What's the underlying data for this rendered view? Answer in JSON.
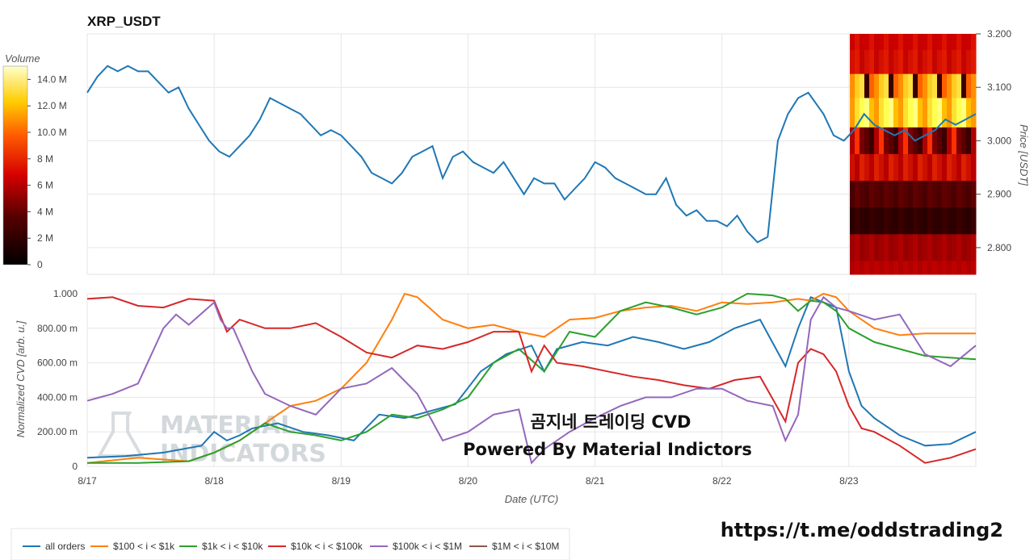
{
  "title": "XRP_USDT",
  "colorbar": {
    "title": "Volume",
    "ticks": [
      {
        "label": "14.0 M",
        "value": 14
      },
      {
        "label": "12.0 M",
        "value": 12
      },
      {
        "label": "10.0 M",
        "value": 10
      },
      {
        "label": "8 M",
        "value": 8
      },
      {
        "label": "6 M",
        "value": 6
      },
      {
        "label": "4 M",
        "value": 4
      },
      {
        "label": "2 M",
        "value": 2
      },
      {
        "label": "0",
        "value": 0
      }
    ]
  },
  "watermark": {
    "line1": "곰지네 트레이딩 CVD",
    "line2": "Powered By Material Indictors",
    "logo_line1": "MATERIAL",
    "logo_line2": "INDICATORS"
  },
  "url": "https://t.me/oddstrading2",
  "chart_data": [
    {
      "type": "line",
      "title": "XRP_USDT",
      "ylabel": "Price [USDT]",
      "ylim": [
        2.75,
        3.2
      ],
      "yticks": [
        "3.200",
        "3.100",
        "3.000",
        "2.900",
        "2.800"
      ],
      "ytick_values": [
        3.2,
        3.1,
        3.0,
        2.9,
        2.8
      ],
      "xlim": [
        0,
        7.0
      ],
      "xticks": [
        "8/17",
        "8/18",
        "8/19",
        "8/20",
        "8/21",
        "8/22",
        "8/23"
      ],
      "grid": true,
      "series": [
        {
          "color": "#1f77b4",
          "x": [
            0,
            0.08,
            0.16,
            0.24,
            0.32,
            0.4,
            0.48,
            0.56,
            0.64,
            0.72,
            0.8,
            0.88,
            0.96,
            1.04,
            1.12,
            1.2,
            1.28,
            1.36,
            1.44,
            1.52,
            1.6,
            1.68,
            1.76,
            1.84,
            1.92,
            2.0,
            2.08,
            2.16,
            2.24,
            2.32,
            2.4,
            2.48,
            2.56,
            2.64,
            2.72,
            2.8,
            2.88,
            2.96,
            3.04,
            3.12,
            3.2,
            3.28,
            3.36,
            3.44,
            3.52,
            3.6,
            3.68,
            3.76,
            3.84,
            3.92,
            4.0,
            4.08,
            4.16,
            4.24,
            4.32,
            4.4,
            4.48,
            4.56,
            4.64,
            4.72,
            4.8,
            4.88,
            4.96,
            5.04,
            5.12,
            5.2,
            5.28,
            5.36,
            5.44,
            5.52,
            5.6,
            5.68,
            5.74,
            5.8,
            5.88,
            5.96,
            6.04,
            6.12,
            6.2,
            6.28,
            6.36,
            6.44,
            6.52,
            6.6,
            6.68,
            6.76,
            6.84,
            6.92,
            7.0
          ],
          "y": [
            3.09,
            3.12,
            3.14,
            3.13,
            3.14,
            3.13,
            3.13,
            3.11,
            3.09,
            3.1,
            3.06,
            3.03,
            3.0,
            2.98,
            2.97,
            2.99,
            3.01,
            3.04,
            3.08,
            3.07,
            3.06,
            3.05,
            3.03,
            3.01,
            3.02,
            3.01,
            2.99,
            2.97,
            2.94,
            2.93,
            2.92,
            2.94,
            2.97,
            2.98,
            2.99,
            2.93,
            2.97,
            2.98,
            2.96,
            2.95,
            2.94,
            2.96,
            2.93,
            2.9,
            2.93,
            2.92,
            2.92,
            2.89,
            2.91,
            2.93,
            2.96,
            2.95,
            2.93,
            2.92,
            2.91,
            2.9,
            2.9,
            2.93,
            2.88,
            2.86,
            2.87,
            2.85,
            2.85,
            2.84,
            2.86,
            2.83,
            2.81,
            2.82,
            3.0,
            3.05,
            3.08,
            3.09,
            3.07,
            3.05,
            3.01,
            3.0,
            3.02,
            3.05,
            3.03,
            3.02,
            3.01,
            3.02,
            3.0,
            3.01,
            3.02,
            3.04,
            3.03,
            3.04,
            3.05
          ]
        }
      ],
      "heatmap_note": "volume profile heatmap overlay on right portion (approx 8/23 onward)"
    },
    {
      "type": "line",
      "ylabel": "Normalized CVD [arb. u.]",
      "xlabel": "Date (UTC)",
      "ylim": [
        0,
        1.0
      ],
      "yticks": [
        "1.000",
        "800.00 m",
        "600.00 m",
        "400.00 m",
        "200.00 m",
        "0"
      ],
      "ytick_values": [
        1.0,
        0.8,
        0.6,
        0.4,
        0.2,
        0
      ],
      "xlim": [
        0,
        7.0
      ],
      "xticks": [
        "8/17",
        "8/18",
        "8/19",
        "8/20",
        "8/21",
        "8/22",
        "8/23"
      ],
      "grid": true,
      "legend_position": "bottom",
      "series": [
        {
          "name": "all orders",
          "color": "#1f77b4",
          "x": [
            0,
            0.3,
            0.6,
            0.9,
            1.0,
            1.1,
            1.2,
            1.3,
            1.5,
            1.7,
            1.9,
            2.1,
            2.3,
            2.5,
            2.7,
            2.9,
            3.1,
            3.3,
            3.5,
            3.6,
            3.7,
            3.9,
            4.1,
            4.3,
            4.5,
            4.7,
            4.9,
            5.1,
            5.3,
            5.5,
            5.6,
            5.7,
            5.8,
            5.9,
            6.0,
            6.1,
            6.2,
            6.4,
            6.6,
            6.8,
            7.0
          ],
          "y": [
            0.05,
            0.06,
            0.08,
            0.12,
            0.2,
            0.15,
            0.18,
            0.22,
            0.25,
            0.2,
            0.18,
            0.15,
            0.3,
            0.28,
            0.32,
            0.36,
            0.55,
            0.65,
            0.7,
            0.55,
            0.68,
            0.72,
            0.7,
            0.75,
            0.72,
            0.68,
            0.72,
            0.8,
            0.85,
            0.58,
            0.8,
            0.98,
            0.95,
            0.92,
            0.55,
            0.35,
            0.28,
            0.18,
            0.12,
            0.13,
            0.2
          ]
        },
        {
          "name": "$100 < i < $1k",
          "color": "#ff7f0e",
          "x": [
            0,
            0.4,
            0.8,
            1.0,
            1.2,
            1.4,
            1.6,
            1.8,
            2.0,
            2.2,
            2.4,
            2.5,
            2.6,
            2.8,
            3.0,
            3.2,
            3.4,
            3.6,
            3.8,
            4.0,
            4.2,
            4.4,
            4.6,
            4.8,
            5.0,
            5.2,
            5.4,
            5.6,
            5.7,
            5.8,
            5.9,
            6.0,
            6.2,
            6.4,
            6.6,
            6.8,
            7.0
          ],
          "y": [
            0.02,
            0.05,
            0.03,
            0.08,
            0.15,
            0.25,
            0.35,
            0.38,
            0.45,
            0.6,
            0.85,
            1.0,
            0.98,
            0.85,
            0.8,
            0.82,
            0.78,
            0.75,
            0.85,
            0.86,
            0.9,
            0.92,
            0.93,
            0.9,
            0.95,
            0.94,
            0.95,
            0.97,
            0.96,
            1.0,
            0.98,
            0.9,
            0.8,
            0.76,
            0.77,
            0.77,
            0.77
          ]
        },
        {
          "name": "$1k < i < $10k",
          "color": "#2ca02c",
          "x": [
            0,
            0.4,
            0.8,
            1.0,
            1.2,
            1.4,
            1.6,
            1.8,
            2.0,
            2.2,
            2.4,
            2.6,
            2.8,
            3.0,
            3.2,
            3.4,
            3.6,
            3.8,
            4.0,
            4.2,
            4.4,
            4.6,
            4.8,
            5.0,
            5.2,
            5.4,
            5.5,
            5.6,
            5.7,
            5.8,
            5.9,
            6.0,
            6.2,
            6.4,
            6.6,
            6.8,
            7.0
          ],
          "y": [
            0.02,
            0.02,
            0.03,
            0.08,
            0.15,
            0.25,
            0.2,
            0.18,
            0.15,
            0.2,
            0.3,
            0.28,
            0.33,
            0.4,
            0.6,
            0.68,
            0.55,
            0.78,
            0.75,
            0.9,
            0.95,
            0.92,
            0.88,
            0.92,
            1.0,
            0.99,
            0.97,
            0.9,
            0.96,
            0.95,
            0.9,
            0.8,
            0.72,
            0.68,
            0.64,
            0.63,
            0.62
          ]
        },
        {
          "name": "$10k < i < $100k",
          "color": "#d62728",
          "x": [
            0,
            0.2,
            0.4,
            0.6,
            0.8,
            1.0,
            1.1,
            1.2,
            1.4,
            1.6,
            1.8,
            2.0,
            2.2,
            2.4,
            2.6,
            2.8,
            3.0,
            3.2,
            3.4,
            3.5,
            3.6,
            3.7,
            3.9,
            4.1,
            4.3,
            4.5,
            4.7,
            4.9,
            5.1,
            5.3,
            5.5,
            5.6,
            5.7,
            5.8,
            5.9,
            6.0,
            6.1,
            6.2,
            6.4,
            6.6,
            6.8,
            7.0
          ],
          "y": [
            0.97,
            0.98,
            0.93,
            0.92,
            0.97,
            0.96,
            0.78,
            0.85,
            0.8,
            0.8,
            0.83,
            0.75,
            0.66,
            0.63,
            0.7,
            0.68,
            0.72,
            0.78,
            0.78,
            0.55,
            0.7,
            0.6,
            0.58,
            0.55,
            0.52,
            0.5,
            0.47,
            0.45,
            0.5,
            0.52,
            0.26,
            0.6,
            0.68,
            0.65,
            0.55,
            0.35,
            0.22,
            0.2,
            0.12,
            0.02,
            0.05,
            0.1
          ]
        },
        {
          "name": "$100k < i < $1M",
          "color": "#9467bd",
          "x": [
            0,
            0.2,
            0.4,
            0.6,
            0.7,
            0.8,
            1.0,
            1.05,
            1.1,
            1.15,
            1.3,
            1.4,
            1.6,
            1.8,
            2.0,
            2.2,
            2.4,
            2.6,
            2.8,
            3.0,
            3.2,
            3.4,
            3.5,
            3.6,
            3.8,
            4.0,
            4.2,
            4.4,
            4.6,
            4.8,
            5.0,
            5.2,
            5.4,
            5.5,
            5.6,
            5.7,
            5.8,
            5.9,
            6.0,
            6.2,
            6.4,
            6.6,
            6.8,
            7.0
          ],
          "y": [
            0.38,
            0.42,
            0.48,
            0.8,
            0.88,
            0.82,
            0.95,
            0.85,
            0.8,
            0.8,
            0.55,
            0.42,
            0.35,
            0.3,
            0.45,
            0.48,
            0.57,
            0.42,
            0.15,
            0.2,
            0.3,
            0.33,
            0.02,
            0.1,
            0.2,
            0.28,
            0.35,
            0.4,
            0.4,
            0.45,
            0.45,
            0.38,
            0.35,
            0.15,
            0.3,
            0.85,
            0.98,
            0.92,
            0.9,
            0.85,
            0.88,
            0.65,
            0.58,
            0.7
          ]
        },
        {
          "name": "$1M < i < $10M",
          "color": "#8c564b",
          "x": [],
          "y": []
        }
      ]
    }
  ]
}
